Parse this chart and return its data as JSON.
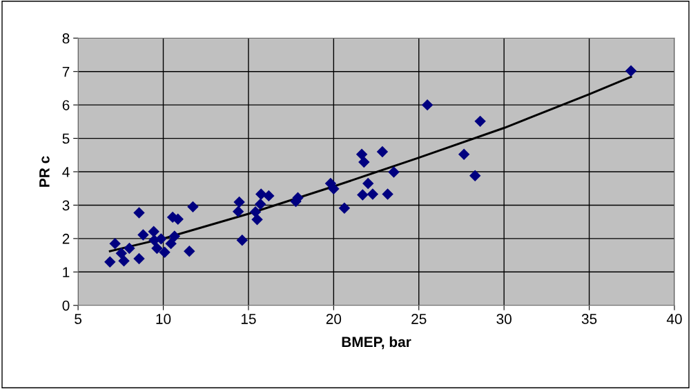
{
  "chart_data": {
    "type": "scatter",
    "xlabel": "BMEP, bar",
    "ylabel": "PR c",
    "series": [
      {
        "color": "#000080",
        "marker": "diamond",
        "x": [
          6.87,
          7.17,
          7.54,
          7.69,
          8.01,
          8.58,
          8.58,
          8.82,
          9.44,
          9.47,
          9.63,
          9.87,
          10.08,
          10.45,
          10.55,
          10.66,
          10.86,
          11.53,
          11.74,
          14.46,
          14.4,
          14.63,
          15.41,
          15.51,
          15.74,
          15.7,
          16.19,
          17.9,
          17.78,
          19.82,
          20.0,
          20.63,
          21.65,
          21.78,
          22.02,
          21.7,
          22.29,
          23.17,
          23.53,
          22.86,
          25.5,
          28.6,
          27.65,
          28.3,
          37.45
        ],
        "values": [
          1.3,
          1.85,
          1.56,
          1.33,
          1.71,
          2.77,
          1.4,
          2.11,
          2.21,
          1.95,
          1.71,
          1.99,
          1.59,
          1.85,
          2.64,
          2.07,
          2.58,
          1.62,
          2.95,
          3.09,
          2.81,
          1.95,
          2.8,
          2.57,
          3.33,
          3.03,
          3.28,
          3.22,
          3.11,
          3.65,
          3.49,
          2.91,
          4.52,
          4.29,
          3.65,
          3.31,
          3.33,
          3.33,
          3.99,
          4.6,
          6.0,
          5.51,
          4.52,
          3.88,
          7.02
        ]
      },
      {
        "type": "line",
        "color": "#000000",
        "marker": "none",
        "x": [
          6.87,
          10,
          15,
          20,
          25,
          30,
          35,
          37.45
        ],
        "values": [
          1.62,
          2.0,
          2.74,
          3.56,
          4.42,
          5.31,
          6.32,
          6.84
        ]
      }
    ],
    "xlim": [
      5,
      40
    ],
    "xticks": [
      5,
      10,
      15,
      20,
      25,
      30,
      35,
      40
    ],
    "ylim": [
      0,
      8
    ],
    "yticks": [
      0,
      1,
      2,
      3,
      4,
      5,
      6,
      7,
      8
    ],
    "grid": true,
    "legend": false
  }
}
